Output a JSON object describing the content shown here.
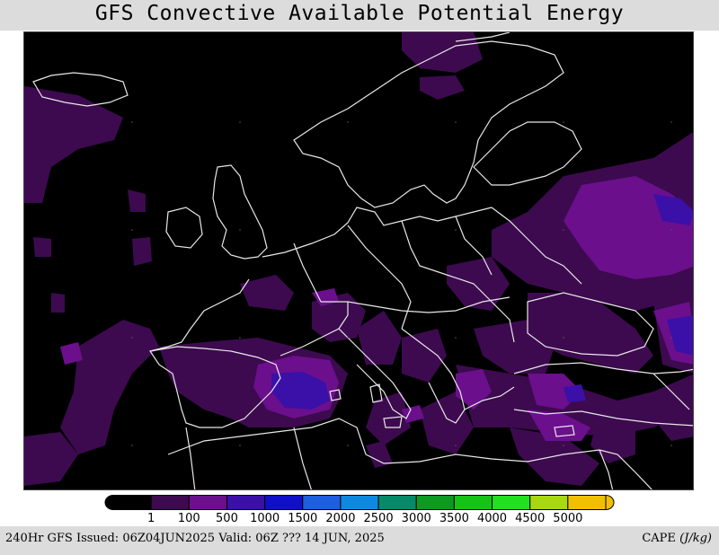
{
  "header": {
    "title": "GFS Convective Available Potential Energy"
  },
  "footer": {
    "issued": "240Hr GFS Issued: 06Z04JUN2025 Valid: 06Z ??? 14 JUN, 2025",
    "units_name": "CAPE",
    "units_value": "(J/kg)"
  },
  "legend": {
    "colors": [
      "#000000",
      "#3d0a4f",
      "#6b0f8c",
      "#3a10a8",
      "#1010c8",
      "#1e5ee0",
      "#0d8ae0",
      "#078a6a",
      "#0c9a20",
      "#14c414",
      "#20e020",
      "#a8d810",
      "#f0c000"
    ],
    "labels": [
      "1",
      "100",
      "500",
      "1000",
      "1500",
      "2000",
      "2500",
      "3000",
      "3500",
      "4000",
      "4500",
      "5000"
    ]
  }
}
